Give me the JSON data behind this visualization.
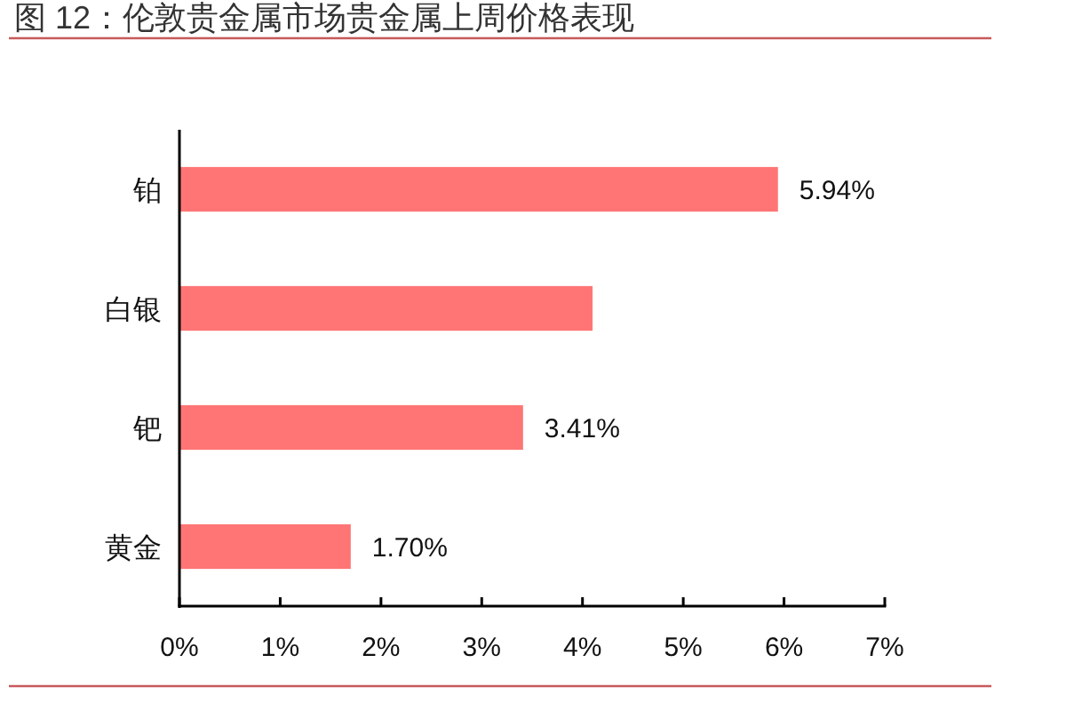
{
  "chart_data": {
    "type": "bar",
    "orientation": "horizontal",
    "title": "图 12：伦敦贵金属市场贵金属上周价格表现",
    "categories": [
      "铂",
      "白银",
      "钯",
      "黄金"
    ],
    "values": [
      5.94,
      4.1,
      3.41,
      1.7
    ],
    "color": "#ff7575",
    "value_labels": [
      "5.94%",
      null,
      "3.41%",
      "1.70%"
    ],
    "xlim": [
      0,
      7
    ],
    "xticks": [
      {
        "value": 0,
        "label": "0%"
      },
      {
        "value": 1,
        "label": "1%"
      },
      {
        "value": 2,
        "label": "2%"
      },
      {
        "value": 3,
        "label": "3%"
      },
      {
        "value": 4,
        "label": "4%"
      },
      {
        "value": 5,
        "label": "5%"
      },
      {
        "value": 6,
        "label": "6%"
      },
      {
        "value": 7,
        "label": "7%"
      }
    ]
  }
}
